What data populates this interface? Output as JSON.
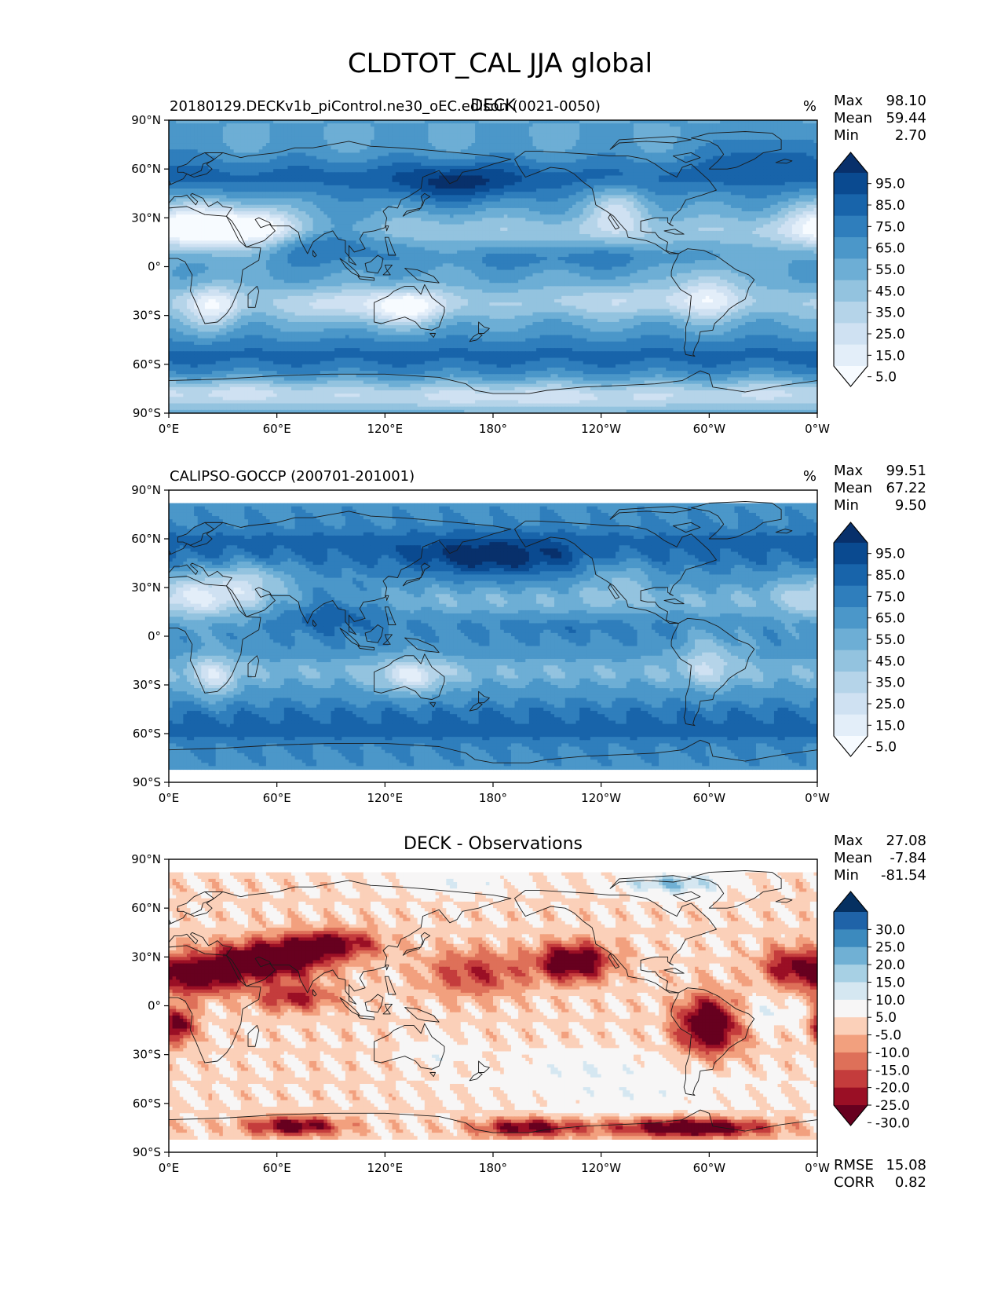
{
  "figure_title": "CLDTOT_CAL JJA global",
  "chart_data": [
    {
      "type": "heatmap",
      "id": "test",
      "title": "DECK",
      "left_title": "20180129.DECKv1b_piControl.ne30_oEC.edison (0021-0050)",
      "units": "%",
      "stats": [
        {
          "label": "Max",
          "value": "98.10"
        },
        {
          "label": "Mean",
          "value": "59.44"
        },
        {
          "label": "Min",
          "value": "2.70"
        }
      ],
      "colormap": "Blues",
      "colorbar_ticks": [
        "95.0",
        "85.0",
        "75.0",
        "65.0",
        "55.0",
        "45.0",
        "35.0",
        "25.0",
        "15.0",
        "5.0"
      ],
      "colorbar_extend": "both",
      "xlim": [
        0,
        360
      ],
      "ylim": [
        -90,
        90
      ],
      "xticklabels": [
        "0°E",
        "60°E",
        "120°E",
        "180°",
        "120°W",
        "60°W",
        "0°W"
      ],
      "yticklabels": [
        "90°N",
        "60°N",
        "30°N",
        "0°",
        "30°S",
        "60°S",
        "90°S"
      ],
      "data_lat_range": [
        -90,
        90
      ]
    },
    {
      "type": "heatmap",
      "id": "reference",
      "title": "",
      "left_title": "CALIPSO-GOCCP (200701-201001)",
      "units": "%",
      "stats": [
        {
          "label": "Max",
          "value": "99.51"
        },
        {
          "label": "Mean",
          "value": "67.22"
        },
        {
          "label": "Min",
          "value": "9.50"
        }
      ],
      "colormap": "Blues",
      "colorbar_ticks": [
        "95.0",
        "85.0",
        "75.0",
        "65.0",
        "55.0",
        "45.0",
        "35.0",
        "25.0",
        "15.0",
        "5.0"
      ],
      "colorbar_extend": "both",
      "xlim": [
        0,
        360
      ],
      "ylim": [
        -90,
        90
      ],
      "xticklabels": [
        "0°E",
        "60°E",
        "120°E",
        "180°",
        "120°W",
        "60°W",
        "0°W"
      ],
      "yticklabels": [
        "90°N",
        "60°N",
        "30°N",
        "0°",
        "30°S",
        "60°S",
        "90°S"
      ],
      "data_lat_range": [
        -82,
        82
      ]
    },
    {
      "type": "heatmap",
      "id": "diff",
      "title": "DECK - Observations",
      "left_title": "",
      "units": "",
      "stats": [
        {
          "label": "Max",
          "value": "27.08"
        },
        {
          "label": "Mean",
          "value": "-7.84"
        },
        {
          "label": "Min",
          "value": "-81.54"
        }
      ],
      "colormap": "RdBu",
      "colorbar_ticks": [
        "30.0",
        "25.0",
        "20.0",
        "15.0",
        "10.0",
        "5.0",
        "-5.0",
        "-10.0",
        "-15.0",
        "-20.0",
        "-25.0",
        "-30.0"
      ],
      "colorbar_extend": "both",
      "xlim": [
        0,
        360
      ],
      "ylim": [
        -90,
        90
      ],
      "xticklabels": [
        "0°E",
        "60°E",
        "120°E",
        "180°",
        "120°W",
        "60°W",
        "0°W"
      ],
      "yticklabels": [
        "90°N",
        "60°N",
        "30°N",
        "0°",
        "30°S",
        "60°S",
        "90°S"
      ],
      "data_lat_range": [
        -82,
        82
      ],
      "metrics": [
        {
          "label": "RMSE",
          "value": "15.08"
        },
        {
          "label": "CORR",
          "value": "0.82"
        }
      ]
    }
  ],
  "colors": {
    "blues": [
      "#f7fbff",
      "#e3eef9",
      "#cfe1f2",
      "#b5d4e9",
      "#93c3df",
      "#6daed5",
      "#4b97c9",
      "#2f7ebc",
      "#1864aa",
      "#0a4a90",
      "#08306b"
    ],
    "rdbu": [
      "#67001f",
      "#9a0f25",
      "#c43c3c",
      "#de7059",
      "#f2a07e",
      "#fbd0b9",
      "#f7f6f6",
      "#d5e7f1",
      "#a7d0e4",
      "#70b0d4",
      "#3c8abe",
      "#1f63a8",
      "#053061"
    ],
    "coast": "#1a1a1a"
  }
}
